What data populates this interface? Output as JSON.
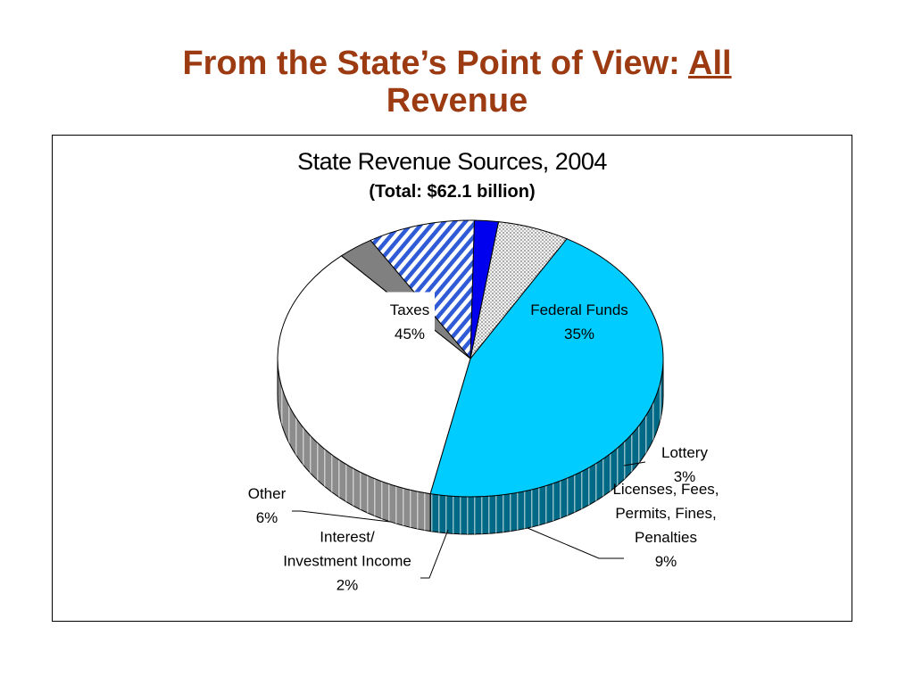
{
  "slide": {
    "title_main": "From the State’s Point of View: ",
    "title_emph": "All",
    "title_tail": "Revenue"
  },
  "chart_data": {
    "type": "pie",
    "title": "State Revenue Sources, 2004",
    "subtitle": "(Total: $62.1 billion)",
    "three_d": true,
    "slices": [
      {
        "label_lines": [
          "Taxes",
          "45%"
        ],
        "value": 45,
        "color": "#00ccff",
        "side_color": "#006a86",
        "pattern": "none"
      },
      {
        "label_lines": [
          "Federal Funds",
          "35%"
        ],
        "value": 35,
        "color": "#ffffff",
        "side_color": "#8c8c8c",
        "pattern": "none"
      },
      {
        "label_lines": [
          "Lottery",
          "3%"
        ],
        "value": 3,
        "color": "#808080",
        "side_color": "#3a3a3a",
        "pattern": "none"
      },
      {
        "label_lines": [
          "Licenses, Fees,",
          "Permits, Fines,",
          "Penalties",
          "9%"
        ],
        "value": 9,
        "color": "#2f5bd6",
        "side_color": "#1b2f74",
        "pattern": "diagonal"
      },
      {
        "label_lines": [
          "Interest/",
          "Investment Income",
          "2%"
        ],
        "value": 2,
        "color": "#0000ee",
        "side_color": "#000070",
        "pattern": "none"
      },
      {
        "label_lines": [
          "Other",
          "6%"
        ],
        "value": 6,
        "color": "#d8d8d8",
        "side_color": "#6c6c6c",
        "pattern": "dots"
      }
    ]
  }
}
